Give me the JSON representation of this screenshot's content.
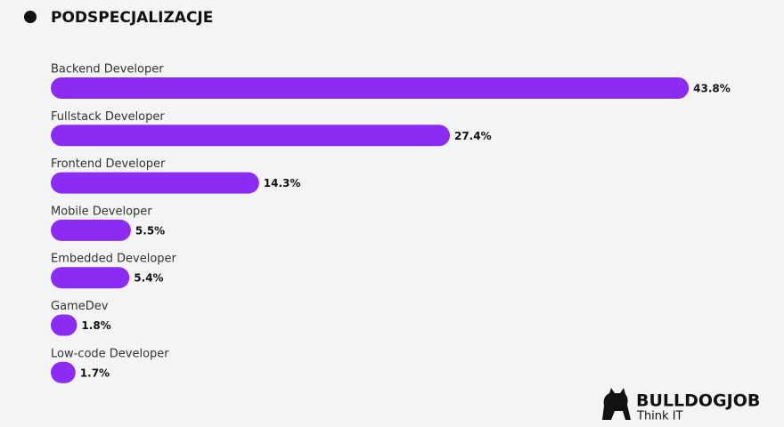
{
  "chart_data": {
    "type": "bar",
    "title": "PODSPECJALIZACJE",
    "categories": [
      "Backend Developer",
      "Fullstack Developer",
      "Frontend Developer",
      "Mobile Developer",
      "Embedded Developer",
      "GameDev",
      "Low-code Developer"
    ],
    "values": [
      43.8,
      27.4,
      14.3,
      5.5,
      5.4,
      1.8,
      1.7
    ],
    "value_labels": [
      "43.8%",
      "27.4%",
      "14.3%",
      "5.5%",
      "5.4%",
      "1.8%",
      "1.7%"
    ],
    "color": "#8b2cf5"
  },
  "brand": {
    "name": "BULLDOGJOB",
    "tagline": "Think IT"
  }
}
